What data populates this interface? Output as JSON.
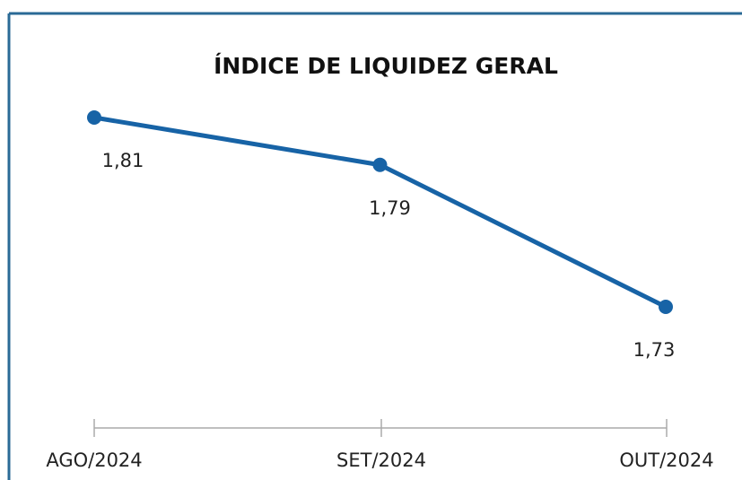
{
  "chart_data": {
    "type": "line",
    "title": "ÍNDICE DE LIQUIDEZ GERAL",
    "categories": [
      "AGO/2024",
      "SET/2024",
      "OUT/2024"
    ],
    "values": [
      1.81,
      1.79,
      1.73
    ],
    "value_labels": [
      "1,81",
      "1,79",
      "1,73"
    ],
    "color": "#1763a6"
  }
}
